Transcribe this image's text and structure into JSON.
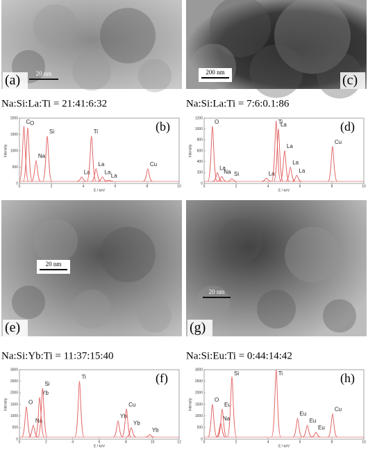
{
  "panels": [
    {
      "image_label": "(a)",
      "scale_bar": "20 nm",
      "composition": "Na:Si:La:Ti = 21:41:6:32",
      "spectrum": {
        "label": "(b)",
        "x_label": "E / keV",
        "y_label": "Intensity",
        "xlim": [
          0,
          10
        ],
        "xticks": [
          0,
          2,
          4,
          6,
          8,
          10
        ],
        "ylim": [
          0,
          2000
        ],
        "yticks": [
          0,
          500,
          1000,
          1500,
          2000
        ],
        "peaks": [
          {
            "label": "C",
            "energy": 0.28,
            "intensity": 1750
          },
          {
            "label": "O",
            "energy": 0.52,
            "intensity": 1700
          },
          {
            "label": "Na",
            "energy": 1.04,
            "intensity": 700
          },
          {
            "label": "Si",
            "energy": 1.74,
            "intensity": 1450
          },
          {
            "label": "La",
            "energy": 3.9,
            "intensity": 200
          },
          {
            "label": "Ti",
            "energy": 4.51,
            "intensity": 1450
          },
          {
            "label": "La",
            "energy": 4.8,
            "intensity": 450
          },
          {
            "label": "La",
            "energy": 5.2,
            "intensity": 200
          },
          {
            "label": "La",
            "energy": 5.6,
            "intensity": 100
          },
          {
            "label": "Cu",
            "energy": 8.04,
            "intensity": 450
          }
        ]
      }
    },
    {
      "image_label": "(c)",
      "scale_bar": "200 nm",
      "composition": "Na:Si:La:Ti = 7:6:0.1:86",
      "spectrum": {
        "label": "(d)",
        "x_label": "E / keV",
        "y_label": "Intensity",
        "xlim": [
          0,
          10
        ],
        "xticks": [
          0,
          2,
          4,
          6,
          8,
          10
        ],
        "ylim": [
          0,
          1200
        ],
        "yticks": [
          0,
          200,
          400,
          600,
          800,
          1000,
          1200
        ],
        "peaks": [
          {
            "label": "O",
            "energy": 0.52,
            "intensity": 1050
          },
          {
            "label": "La",
            "energy": 0.83,
            "intensity": 200
          },
          {
            "label": "Na",
            "energy": 1.1,
            "intensity": 130
          },
          {
            "label": "Si",
            "energy": 1.74,
            "intensity": 90
          },
          {
            "label": "La",
            "energy": 3.9,
            "intensity": 100
          },
          {
            "label": "Ti",
            "energy": 4.51,
            "intensity": 1150
          },
          {
            "label": "La",
            "energy": 4.65,
            "intensity": 1000
          },
          {
            "label": "La",
            "energy": 5.04,
            "intensity": 600
          },
          {
            "label": "La",
            "energy": 5.4,
            "intensity": 300
          },
          {
            "label": "La",
            "energy": 5.8,
            "intensity": 150
          },
          {
            "label": "Cu",
            "energy": 8.04,
            "intensity": 680
          }
        ]
      }
    },
    {
      "image_label": "(e)",
      "scale_bar": "20 nm",
      "composition": "Na:Si:Yb:Ti = 11:37:15:40",
      "spectrum": {
        "label": "(f)",
        "x_label": "E / keV",
        "y_label": "Intensity",
        "xlim": [
          0,
          12
        ],
        "xticks": [
          0,
          2,
          4,
          6,
          8,
          10,
          12
        ],
        "ylim": [
          0,
          3000
        ],
        "yticks": [
          0,
          500,
          1000,
          1500,
          2000,
          2500,
          3000
        ],
        "peaks": [
          {
            "label": "O",
            "energy": 0.52,
            "intensity": 1400
          },
          {
            "label": "Na",
            "energy": 1.04,
            "intensity": 600
          },
          {
            "label": "Yb",
            "energy": 1.52,
            "intensity": 1800
          },
          {
            "label": "Si",
            "energy": 1.74,
            "intensity": 2200
          },
          {
            "label": "Ti",
            "energy": 4.51,
            "intensity": 2500
          },
          {
            "label": "Yb",
            "energy": 7.41,
            "intensity": 800
          },
          {
            "label": "Cu",
            "energy": 8.04,
            "intensity": 1300
          },
          {
            "label": "Yb",
            "energy": 8.4,
            "intensity": 500
          },
          {
            "label": "Yb",
            "energy": 9.8,
            "intensity": 200
          }
        ]
      }
    },
    {
      "image_label": "(g)",
      "scale_bar": "20 nm",
      "composition": "Na:Si:Eu:Ti = 0:44:14:42",
      "spectrum": {
        "label": "(h)",
        "x_label": "E / keV",
        "y_label": "Intensity",
        "xlim": [
          0,
          10
        ],
        "xticks": [
          0,
          2,
          4,
          6,
          8,
          10
        ],
        "ylim": [
          0,
          3000
        ],
        "yticks": [
          0,
          500,
          1000,
          1500,
          2000,
          2500,
          3000
        ],
        "peaks": [
          {
            "label": "O",
            "energy": 0.52,
            "intensity": 1500
          },
          {
            "label": "Na",
            "energy": 1.04,
            "intensity": 700
          },
          {
            "label": "Eu",
            "energy": 1.13,
            "intensity": 1300
          },
          {
            "label": "Si",
            "energy": 1.74,
            "intensity": 2700
          },
          {
            "label": "Ti",
            "energy": 4.51,
            "intensity": 3000
          },
          {
            "label": "Eu",
            "energy": 5.85,
            "intensity": 900
          },
          {
            "label": "Eu",
            "energy": 6.46,
            "intensity": 600
          },
          {
            "label": "Eu",
            "energy": 7.0,
            "intensity": 300
          },
          {
            "label": "Cu",
            "energy": 8.04,
            "intensity": 1100
          }
        ]
      }
    }
  ]
}
